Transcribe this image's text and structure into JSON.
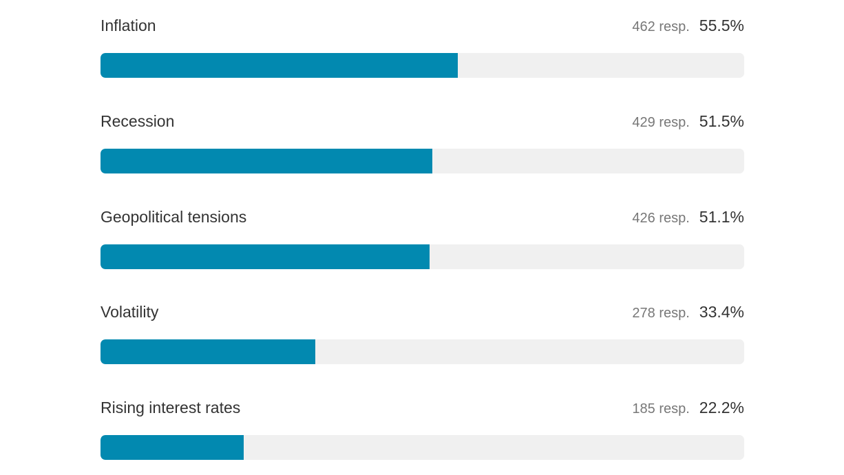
{
  "chart_data": {
    "type": "bar",
    "orientation": "horizontal",
    "categories": [
      "Inflation",
      "Recession",
      "Geopolitical tensions",
      "Volatility",
      "Rising interest rates"
    ],
    "values": [
      55.5,
      51.5,
      51.1,
      33.4,
      22.2
    ],
    "responses": [
      462,
      429,
      426,
      278,
      185
    ],
    "ylim": [
      0,
      100
    ],
    "grid": false,
    "legend": "none",
    "bar_color": "#0289b0",
    "track_color": "#f0f0f0"
  },
  "rows": [
    {
      "label": "Inflation",
      "responses": "462 resp.",
      "percent": "55.5%",
      "value": 55.5
    },
    {
      "label": "Recession",
      "responses": "429 resp.",
      "percent": "51.5%",
      "value": 51.5
    },
    {
      "label": "Geopolitical tensions",
      "responses": "426 resp.",
      "percent": "51.1%",
      "value": 51.1
    },
    {
      "label": "Volatility",
      "responses": "278 resp.",
      "percent": "33.4%",
      "value": 33.4
    },
    {
      "label": "Rising interest rates",
      "responses": "185 resp.",
      "percent": "22.2%",
      "value": 22.2
    }
  ]
}
